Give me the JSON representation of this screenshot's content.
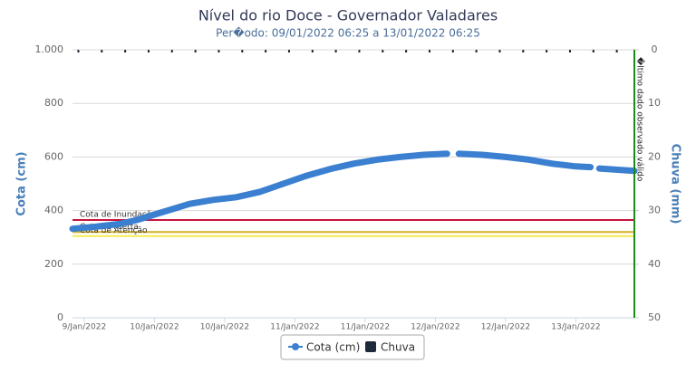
{
  "chart_data": {
    "type": "line",
    "title": "Nível do rio Doce - Governador Valadares",
    "subtitle": "Per�odo: 09/01/2022 06:25 a 13/01/2022 06:25",
    "y_label": "Cota (cm)",
    "y2_label": "Chuva (mm)",
    "xlim": [
      0,
      96
    ],
    "xticks": [
      {
        "value": 2,
        "label": "9/Jan/2022"
      },
      {
        "value": 14,
        "label": "10/Jan/2022"
      },
      {
        "value": 26,
        "label": "10/Jan/2022"
      },
      {
        "value": 38,
        "label": "11/Jan/2022"
      },
      {
        "value": 50,
        "label": "11/Jan/2022"
      },
      {
        "value": 62,
        "label": "12/Jan/2022"
      },
      {
        "value": 74,
        "label": "12/Jan/2022"
      },
      {
        "value": 86,
        "label": "13/Jan/2022"
      }
    ],
    "ylim": [
      0,
      1000
    ],
    "yticks": [
      0,
      200,
      400,
      600,
      800,
      {
        "value": 1000,
        "label": "1.000"
      }
    ],
    "y2lim": [
      0,
      50
    ],
    "y2_reversed": true,
    "y2ticks": [
      0,
      10,
      20,
      30,
      40,
      50
    ],
    "grid": true,
    "series": [
      {
        "name": "Cota (cm)",
        "color": "#3a7fd0",
        "x": [
          0,
          4,
          8,
          11,
          14,
          17,
          20,
          24,
          28,
          32,
          36,
          40,
          44,
          48,
          52,
          56,
          60,
          64,
          65,
          66,
          70,
          74,
          78,
          82,
          86,
          88.5,
          89.2,
          90,
          96
        ],
        "values": [
          332,
          340,
          350,
          365,
          385,
          405,
          425,
          440,
          450,
          470,
          500,
          530,
          555,
          575,
          590,
          600,
          608,
          612,
          null,
          612,
          608,
          600,
          590,
          575,
          565,
          562,
          null,
          557,
          548
        ]
      },
      {
        "name": "Chuva",
        "color": "#1c2a3a",
        "axis": "y2",
        "x": [
          1,
          5,
          9,
          13,
          17,
          21,
          25,
          29,
          33,
          37,
          41,
          45,
          49,
          53,
          57,
          61,
          65,
          69,
          73,
          77,
          81,
          85,
          89,
          93
        ],
        "values": [
          0,
          0,
          0,
          0,
          0,
          0,
          0,
          0,
          0,
          0,
          0,
          0,
          0,
          0,
          0,
          0,
          0,
          0,
          0,
          0,
          0,
          0,
          0,
          0
        ]
      }
    ],
    "thresholds": [
      {
        "label": "Cota de Inundação",
        "value": 365,
        "color": "#c8143c"
      },
      {
        "label": "Cota de Alerta",
        "value": 320,
        "color": "#d4b020"
      },
      {
        "label": "Cota de Atenção",
        "value": 305,
        "color": "#f5ec50"
      }
    ],
    "marker_line": {
      "label": "�ltimo dado observado válido",
      "x": 96,
      "color": "#1a8a1a"
    },
    "legend": "bottom"
  }
}
